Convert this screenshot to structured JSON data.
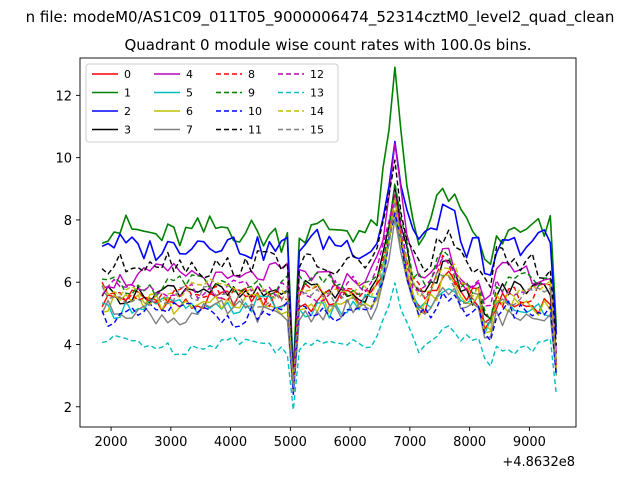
{
  "chart_data": {
    "type": "line",
    "suptitle": "n file: modeM0/AS1C09_011T05_9000006474_52314cztM0_level2_quad_clean",
    "title": "Quadrant 0 module wise count rates with 100.0s bins.",
    "xlabel": "",
    "ylabel": "",
    "x_offset_label": "+4.8632e8",
    "xlim": [
      1480,
      9780
    ],
    "ylim": [
      1.35,
      13.2
    ],
    "xticks": [
      2000,
      3000,
      4000,
      5000,
      6000,
      7000,
      8000,
      9000
    ],
    "yticks": [
      2,
      4,
      6,
      8,
      10,
      12
    ],
    "legend_location": "upper-left",
    "x_range": [
      1850,
      9450
    ],
    "x_step": 100,
    "series": [
      {
        "name": "0",
        "color": "#ff0000",
        "dash": "solid",
        "base": 5.4,
        "amp": 0.3,
        "dip": 2.6,
        "peak": 8.6
      },
      {
        "name": "1",
        "color": "#008000",
        "dash": "solid",
        "base": 7.6,
        "amp": 0.5,
        "dip": 3.1,
        "peak": 12.8
      },
      {
        "name": "2",
        "color": "#0000ff",
        "dash": "solid",
        "base": 7.2,
        "amp": 0.4,
        "dip": 2.7,
        "peak": 10.5
      },
      {
        "name": "3",
        "color": "#000000",
        "dash": "solid",
        "base": 5.7,
        "amp": 0.3,
        "dip": 2.8,
        "peak": 9.2
      },
      {
        "name": "4",
        "color": "#bf00bf",
        "dash": "solid",
        "base": 6.2,
        "amp": 0.3,
        "dip": 2.6,
        "peak": 10.1
      },
      {
        "name": "5",
        "color": "#00bfbf",
        "dash": "solid",
        "base": 5.2,
        "amp": 0.3,
        "dip": 2.5,
        "peak": 8.2
      },
      {
        "name": "6",
        "color": "#bfbf00",
        "dash": "solid",
        "base": 5.3,
        "amp": 0.3,
        "dip": 2.7,
        "peak": 8.4
      },
      {
        "name": "7",
        "color": "#808080",
        "dash": "solid",
        "base": 5.0,
        "amp": 0.3,
        "dip": 2.4,
        "peak": 8.0
      },
      {
        "name": "8",
        "color": "#ff0000",
        "dash": "dashed",
        "base": 5.6,
        "amp": 0.3,
        "dip": 2.7,
        "peak": 8.7
      },
      {
        "name": "9",
        "color": "#008000",
        "dash": "dashed",
        "base": 5.9,
        "amp": 0.3,
        "dip": 2.9,
        "peak": 9.0
      },
      {
        "name": "10",
        "color": "#0000ff",
        "dash": "dashed",
        "base": 5.0,
        "amp": 0.3,
        "dip": 2.4,
        "peak": 8.3
      },
      {
        "name": "11",
        "color": "#000000",
        "dash": "dashed",
        "base": 6.6,
        "amp": 0.4,
        "dip": 2.8,
        "peak": 9.5
      },
      {
        "name": "12",
        "color": "#bf00bf",
        "dash": "dashed",
        "base": 5.8,
        "amp": 0.3,
        "dip": 2.7,
        "peak": 9.1
      },
      {
        "name": "13",
        "color": "#00bfbf",
        "dash": "dashed",
        "base": 4.0,
        "amp": 0.2,
        "dip": 1.9,
        "peak": 6.2
      },
      {
        "name": "14",
        "color": "#bfbf00",
        "dash": "dashed",
        "base": 5.7,
        "amp": 0.3,
        "dip": 2.8,
        "peak": 8.8
      },
      {
        "name": "15",
        "color": "#808080",
        "dash": "dashed",
        "base": 5.5,
        "amp": 0.3,
        "dip": 2.6,
        "peak": 8.7
      }
    ]
  }
}
